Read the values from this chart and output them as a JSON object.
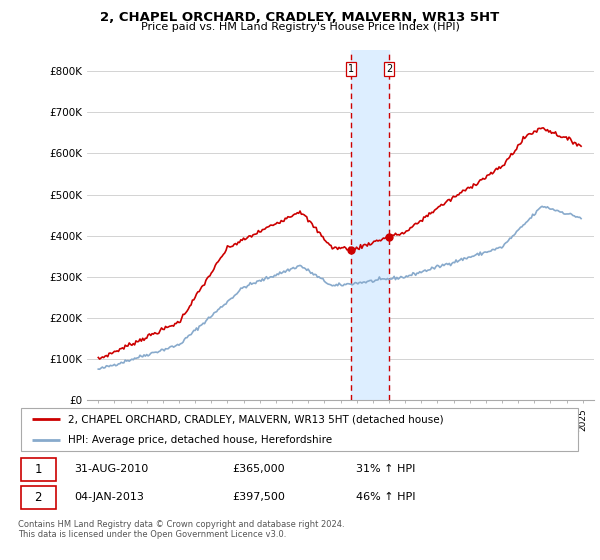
{
  "title": "2, CHAPEL ORCHARD, CRADLEY, MALVERN, WR13 5HT",
  "subtitle": "Price paid vs. HM Land Registry's House Price Index (HPI)",
  "legend_line1": "2, CHAPEL ORCHARD, CRADLEY, MALVERN, WR13 5HT (detached house)",
  "legend_line2": "HPI: Average price, detached house, Herefordshire",
  "transaction1_date": "31-AUG-2010",
  "transaction1_price": "£365,000",
  "transaction1_hpi": "31% ↑ HPI",
  "transaction2_date": "04-JAN-2013",
  "transaction2_price": "£397,500",
  "transaction2_hpi": "46% ↑ HPI",
  "footer": "Contains HM Land Registry data © Crown copyright and database right 2024.\nThis data is licensed under the Open Government Licence v3.0.",
  "property_color": "#cc0000",
  "hpi_color": "#88aacc",
  "shade_color": "#ddeeff",
  "vline_color": "#cc0000",
  "ylim": [
    0,
    850000
  ],
  "yticks": [
    0,
    100000,
    200000,
    300000,
    400000,
    500000,
    600000,
    700000,
    800000
  ],
  "ytick_labels": [
    "£0",
    "£100K",
    "£200K",
    "£300K",
    "£400K",
    "£500K",
    "£600K",
    "£700K",
    "£800K"
  ],
  "transaction1_x": 2010.67,
  "transaction2_x": 2013.01,
  "transaction1_y": 365000,
  "transaction2_y": 397500,
  "xlim_left": 1994.3,
  "xlim_right": 2025.7
}
